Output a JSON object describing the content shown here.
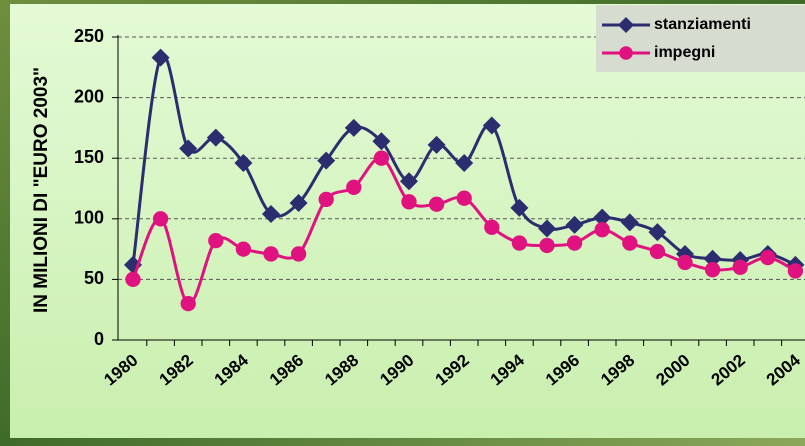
{
  "chart_data": {
    "type": "line",
    "y_label": "IN MILIONI DI \"EURO 2003\"",
    "categories": [
      "1980",
      null,
      "1982",
      null,
      "1984",
      null,
      "1986",
      null,
      "1988",
      null,
      "1990",
      null,
      "1992",
      null,
      "1994",
      null,
      "1996",
      null,
      "1998",
      null,
      "2000",
      null,
      "2002",
      null,
      "2004"
    ],
    "series": [
      {
        "name": "stanziamenti",
        "color": "#2b2d6e",
        "marker": "diamond",
        "values": [
          62,
          233,
          158,
          167,
          146,
          104,
          113,
          148,
          175,
          164,
          131,
          161,
          146,
          177,
          109,
          92,
          95,
          101,
          97,
          89,
          71,
          67,
          66,
          71,
          62
        ]
      },
      {
        "name": "impegni",
        "color": "#e0127f",
        "marker": "circle",
        "values": [
          50,
          100,
          30,
          82,
          75,
          71,
          71,
          116,
          126,
          150,
          114,
          112,
          117,
          93,
          80,
          78,
          80,
          91,
          80,
          73,
          64,
          58,
          60,
          68,
          57
        ]
      }
    ],
    "ylim": [
      0,
      250
    ],
    "yticks": [
      0,
      50,
      100,
      150,
      200,
      250
    ],
    "grid": true,
    "legend": "top-right"
  }
}
